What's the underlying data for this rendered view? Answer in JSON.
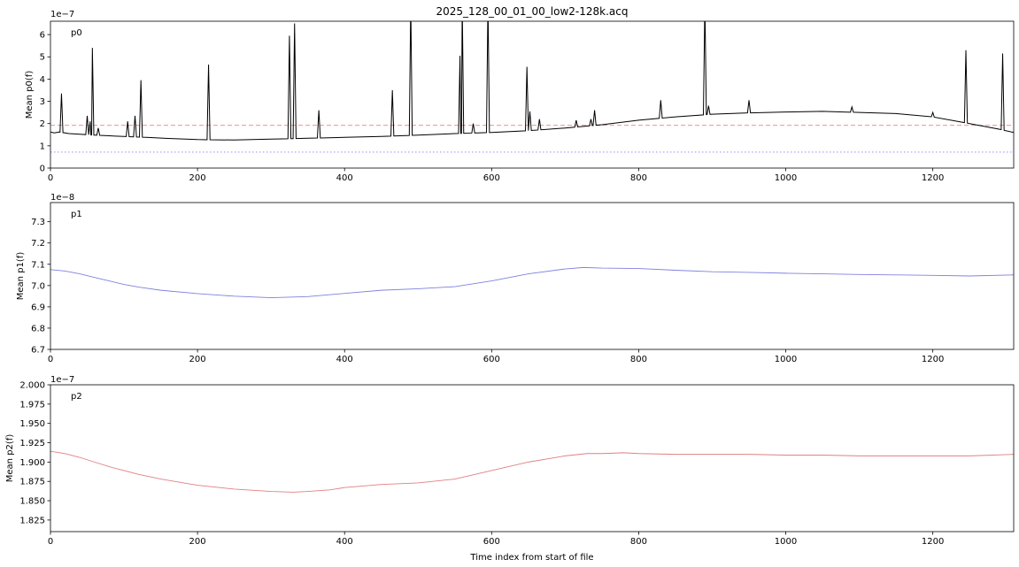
{
  "chart_data": [
    {
      "type": "line",
      "title": "2025_128_00_01_00_low2-128k.acq",
      "annotation": "p0",
      "ylabel": "Mean p0(f)",
      "xlabel": "",
      "offset_text": "1e−7",
      "xlim": [
        0,
        1310
      ],
      "ylim": [
        0,
        6.6
      ],
      "xticks": [
        "0",
        "200",
        "400",
        "600",
        "800",
        "1000",
        "1200"
      ],
      "yticks": [
        "0",
        "1",
        "2",
        "3",
        "4",
        "5",
        "6"
      ],
      "grid": false,
      "line_color": "#000000",
      "reference_lines": [
        {
          "y": 1.92,
          "color": "#f08080",
          "style": "dashed"
        },
        {
          "y": 0.72,
          "color": "#8080ff",
          "style": "dotted"
        }
      ],
      "baseline": {
        "x": [
          0,
          5,
          12,
          25,
          40,
          60,
          80,
          100,
          130,
          160,
          200,
          250,
          300,
          350,
          400,
          450,
          500,
          550,
          600,
          650,
          700,
          750,
          800,
          850,
          900,
          950,
          1000,
          1050,
          1100,
          1150,
          1200,
          1250,
          1290,
          1310
        ],
        "y": [
          1.62,
          1.58,
          1.62,
          1.55,
          1.52,
          1.48,
          1.45,
          1.42,
          1.38,
          1.33,
          1.28,
          1.26,
          1.3,
          1.34,
          1.38,
          1.42,
          1.48,
          1.55,
          1.6,
          1.68,
          1.8,
          1.95,
          2.15,
          2.3,
          2.42,
          2.48,
          2.52,
          2.55,
          2.5,
          2.45,
          2.3,
          2.0,
          1.75,
          1.6
        ]
      },
      "spikes": [
        {
          "x": 15,
          "y": 3.35
        },
        {
          "x": 50,
          "y": 2.35
        },
        {
          "x": 54,
          "y": 2.1
        },
        {
          "x": 57,
          "y": 5.4
        },
        {
          "x": 65,
          "y": 1.8
        },
        {
          "x": 105,
          "y": 2.1
        },
        {
          "x": 115,
          "y": 2.35
        },
        {
          "x": 123,
          "y": 3.95
        },
        {
          "x": 215,
          "y": 4.65
        },
        {
          "x": 325,
          "y": 5.95
        },
        {
          "x": 332,
          "y": 6.5
        },
        {
          "x": 365,
          "y": 2.6
        },
        {
          "x": 465,
          "y": 3.5
        },
        {
          "x": 490,
          "y": 7.5
        },
        {
          "x": 557,
          "y": 5.05
        },
        {
          "x": 560,
          "y": 7.5
        },
        {
          "x": 575,
          "y": 2.0
        },
        {
          "x": 595,
          "y": 7.5
        },
        {
          "x": 648,
          "y": 4.55
        },
        {
          "x": 652,
          "y": 2.55
        },
        {
          "x": 665,
          "y": 2.2
        },
        {
          "x": 715,
          "y": 2.15
        },
        {
          "x": 735,
          "y": 2.2
        },
        {
          "x": 740,
          "y": 2.6
        },
        {
          "x": 830,
          "y": 3.05
        },
        {
          "x": 890,
          "y": 7.5
        },
        {
          "x": 895,
          "y": 2.8
        },
        {
          "x": 950,
          "y": 3.05
        },
        {
          "x": 1090,
          "y": 2.75
        },
        {
          "x": 1200,
          "y": 2.5
        },
        {
          "x": 1245,
          "y": 5.3
        },
        {
          "x": 1295,
          "y": 5.15
        }
      ]
    },
    {
      "type": "line",
      "annotation": "p1",
      "ylabel": "Mean p1(f)",
      "xlabel": "",
      "offset_text": "1e−8",
      "xlim": [
        0,
        1310
      ],
      "ylim": [
        6.7,
        7.39
      ],
      "xticks": [
        "0",
        "200",
        "400",
        "600",
        "800",
        "1000",
        "1200"
      ],
      "yticks": [
        "6.7",
        "6.8",
        "6.9",
        "7.0",
        "7.1",
        "7.2",
        "7.3"
      ],
      "grid": false,
      "line_color": "#8080e0",
      "x": [
        0,
        20,
        40,
        60,
        80,
        100,
        120,
        150,
        200,
        250,
        300,
        350,
        400,
        450,
        500,
        550,
        600,
        650,
        700,
        725,
        750,
        800,
        850,
        900,
        950,
        1000,
        1050,
        1100,
        1150,
        1200,
        1250,
        1310
      ],
      "y": [
        7.075,
        7.068,
        7.055,
        7.038,
        7.022,
        7.005,
        6.993,
        6.978,
        6.962,
        6.95,
        6.943,
        6.948,
        6.963,
        6.978,
        6.985,
        6.995,
        7.022,
        7.055,
        7.078,
        7.085,
        7.082,
        7.08,
        7.072,
        7.065,
        7.062,
        7.058,
        7.055,
        7.052,
        7.05,
        7.048,
        7.045,
        7.05
      ]
    },
    {
      "type": "line",
      "annotation": "p2",
      "ylabel": "Mean p2(f)",
      "xlabel": "Time index from start of file",
      "offset_text": "1e−7",
      "xlim": [
        0,
        1310
      ],
      "ylim": [
        1.81,
        2.0
      ],
      "xticks": [
        "0",
        "200",
        "400",
        "600",
        "800",
        "1000",
        "1200"
      ],
      "yticks": [
        "1.825",
        "1.850",
        "1.875",
        "1.900",
        "1.925",
        "1.950",
        "1.975",
        "2.000"
      ],
      "grid": false,
      "line_color": "#e08080",
      "x": [
        0,
        20,
        40,
        60,
        80,
        100,
        120,
        150,
        200,
        250,
        300,
        330,
        350,
        380,
        400,
        450,
        500,
        550,
        600,
        650,
        700,
        730,
        750,
        780,
        800,
        850,
        900,
        950,
        1000,
        1050,
        1100,
        1150,
        1200,
        1250,
        1310
      ],
      "y": [
        1.914,
        1.911,
        1.906,
        1.9,
        1.894,
        1.889,
        1.884,
        1.878,
        1.87,
        1.865,
        1.862,
        1.861,
        1.862,
        1.864,
        1.867,
        1.871,
        1.873,
        1.878,
        1.889,
        1.9,
        1.908,
        1.911,
        1.911,
        1.912,
        1.911,
        1.91,
        1.91,
        1.91,
        1.909,
        1.909,
        1.908,
        1.908,
        1.908,
        1.908,
        1.91
      ]
    }
  ]
}
